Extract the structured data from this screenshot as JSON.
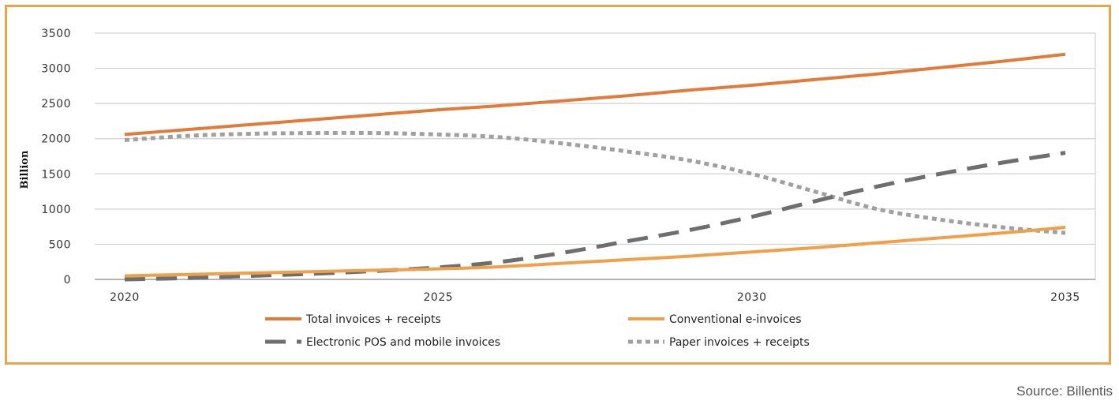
{
  "source": "Source: Billentis",
  "colors": {
    "frame": "#e8a54a",
    "gridline": "#d0d0d0",
    "axis": "#9a9a9a"
  },
  "chart_data": {
    "type": "line",
    "title": "",
    "xlabel": "",
    "ylabel": "Billion",
    "xlim": [
      2020,
      2035
    ],
    "ylim": [
      0,
      3500
    ],
    "yticks": [
      0,
      500,
      1000,
      1500,
      2000,
      2500,
      3000,
      3500
    ],
    "xticks": [
      2020,
      2025,
      2030,
      2035
    ],
    "grid": true,
    "legend_position": "bottom",
    "series": [
      {
        "name": "Total invoices + receipts",
        "color": "#e07b39",
        "dash": "solid",
        "x": [
          2020,
          2021,
          2022,
          2023,
          2024,
          2025,
          2026,
          2027,
          2028,
          2029,
          2030,
          2031,
          2032,
          2033,
          2034,
          2035
        ],
        "values": [
          2060,
          2130,
          2200,
          2270,
          2340,
          2410,
          2470,
          2540,
          2610,
          2690,
          2760,
          2840,
          2920,
          3010,
          3100,
          3200
        ]
      },
      {
        "name": "Conventional e-invoices",
        "color": "#f0a04b",
        "dash": "solid",
        "x": [
          2020,
          2021,
          2022,
          2023,
          2024,
          2025,
          2026,
          2027,
          2028,
          2029,
          2030,
          2031,
          2032,
          2033,
          2034,
          2035
        ],
        "values": [
          50,
          70,
          90,
          110,
          130,
          150,
          180,
          230,
          280,
          330,
          390,
          450,
          520,
          590,
          660,
          740
        ]
      },
      {
        "name": "Electronic POS and mobile invoices",
        "color": "#6e6e6e",
        "dash": "long",
        "x": [
          2020,
          2021,
          2022,
          2023,
          2024,
          2025,
          2026,
          2027,
          2028,
          2029,
          2030,
          2031,
          2032,
          2033,
          2034,
          2035
        ],
        "values": [
          0,
          20,
          50,
          80,
          120,
          170,
          250,
          380,
          540,
          700,
          890,
          1110,
          1320,
          1500,
          1660,
          1800
        ]
      },
      {
        "name": "Paper invoices + receipts",
        "color": "#a0a0a0",
        "dash": "dotted",
        "x": [
          2020,
          2021,
          2022,
          2023,
          2024,
          2025,
          2026,
          2027,
          2028,
          2029,
          2030,
          2031,
          2032,
          2033,
          2034,
          2035
        ],
        "values": [
          1980,
          2040,
          2070,
          2080,
          2080,
          2060,
          2020,
          1930,
          1820,
          1690,
          1500,
          1250,
          1000,
          850,
          740,
          660
        ]
      }
    ]
  }
}
